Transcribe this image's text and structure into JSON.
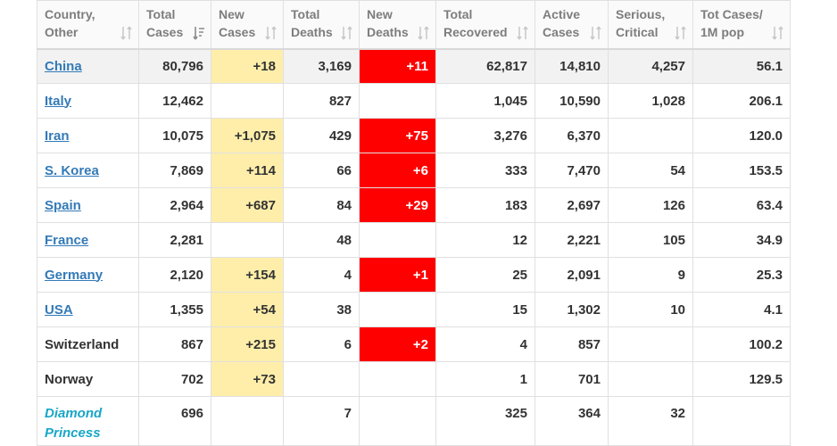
{
  "headers": [
    {
      "l1": "Country,",
      "l2": "Other"
    },
    {
      "l1": "Total",
      "l2": "Cases"
    },
    {
      "l1": "New",
      "l2": "Cases"
    },
    {
      "l1": "Total",
      "l2": "Deaths"
    },
    {
      "l1": "New",
      "l2": "Deaths"
    },
    {
      "l1": "Total",
      "l2": "Recovered"
    },
    {
      "l1": "Active",
      "l2": "Cases"
    },
    {
      "l1": "Serious,",
      "l2": "Critical"
    },
    {
      "l1": "Tot Cases/",
      "l2": "1M pop"
    }
  ],
  "rows": [
    {
      "country": "China",
      "total_cases": "80,796",
      "new_cases": "+18",
      "total_deaths": "3,169",
      "new_deaths": "+11",
      "total_recovered": "62,817",
      "active_cases": "14,810",
      "serious_critical": "4,257",
      "cases_per_1m": "56.1"
    },
    {
      "country": "Italy",
      "total_cases": "12,462",
      "new_cases": "",
      "total_deaths": "827",
      "new_deaths": "",
      "total_recovered": "1,045",
      "active_cases": "10,590",
      "serious_critical": "1,028",
      "cases_per_1m": "206.1"
    },
    {
      "country": "Iran",
      "total_cases": "10,075",
      "new_cases": "+1,075",
      "total_deaths": "429",
      "new_deaths": "+75",
      "total_recovered": "3,276",
      "active_cases": "6,370",
      "serious_critical": "",
      "cases_per_1m": "120.0"
    },
    {
      "country": "S. Korea",
      "total_cases": "7,869",
      "new_cases": "+114",
      "total_deaths": "66",
      "new_deaths": "+6",
      "total_recovered": "333",
      "active_cases": "7,470",
      "serious_critical": "54",
      "cases_per_1m": "153.5"
    },
    {
      "country": "Spain",
      "total_cases": "2,964",
      "new_cases": "+687",
      "total_deaths": "84",
      "new_deaths": "+29",
      "total_recovered": "183",
      "active_cases": "2,697",
      "serious_critical": "126",
      "cases_per_1m": "63.4"
    },
    {
      "country": "France",
      "total_cases": "2,281",
      "new_cases": "",
      "total_deaths": "48",
      "new_deaths": "",
      "total_recovered": "12",
      "active_cases": "2,221",
      "serious_critical": "105",
      "cases_per_1m": "34.9"
    },
    {
      "country": "Germany",
      "total_cases": "2,120",
      "new_cases": "+154",
      "total_deaths": "4",
      "new_deaths": "+1",
      "total_recovered": "25",
      "active_cases": "2,091",
      "serious_critical": "9",
      "cases_per_1m": "25.3"
    },
    {
      "country": "USA",
      "total_cases": "1,355",
      "new_cases": "+54",
      "total_deaths": "38",
      "new_deaths": "",
      "total_recovered": "15",
      "active_cases": "1,302",
      "serious_critical": "10",
      "cases_per_1m": "4.1"
    },
    {
      "country": "Switzerland",
      "total_cases": "867",
      "new_cases": "+215",
      "total_deaths": "6",
      "new_deaths": "+2",
      "total_recovered": "4",
      "active_cases": "857",
      "serious_critical": "",
      "cases_per_1m": "100.2"
    },
    {
      "country": "Norway",
      "total_cases": "702",
      "new_cases": "+73",
      "total_deaths": "",
      "new_deaths": "",
      "total_recovered": "1",
      "active_cases": "701",
      "serious_critical": "",
      "cases_per_1m": "129.5"
    },
    {
      "country": "Diamond Princess",
      "total_cases": "696",
      "new_cases": "",
      "total_deaths": "7",
      "new_deaths": "",
      "total_recovered": "325",
      "active_cases": "364",
      "serious_critical": "32",
      "cases_per_1m": ""
    }
  ],
  "ui": {
    "active_sort_column": "Total Cases",
    "highlighted_country": "China",
    "linked_countries": [
      "China",
      "Italy",
      "Iran",
      "S. Korea",
      "Spain",
      "France",
      "Germany",
      "USA"
    ],
    "italic_countries": [
      "Diamond Princess"
    ],
    "colors": {
      "link": "#337ab7",
      "new_cases_bg": "#ffeeaa",
      "new_deaths_bg": "#ff0000",
      "highlight_row_bg": "#f2f2f2",
      "italic_country": "#18a6c7"
    },
    "icons": {
      "sort": "sort-arrows-icon",
      "sort_active": "sort-descending-icon"
    }
  }
}
